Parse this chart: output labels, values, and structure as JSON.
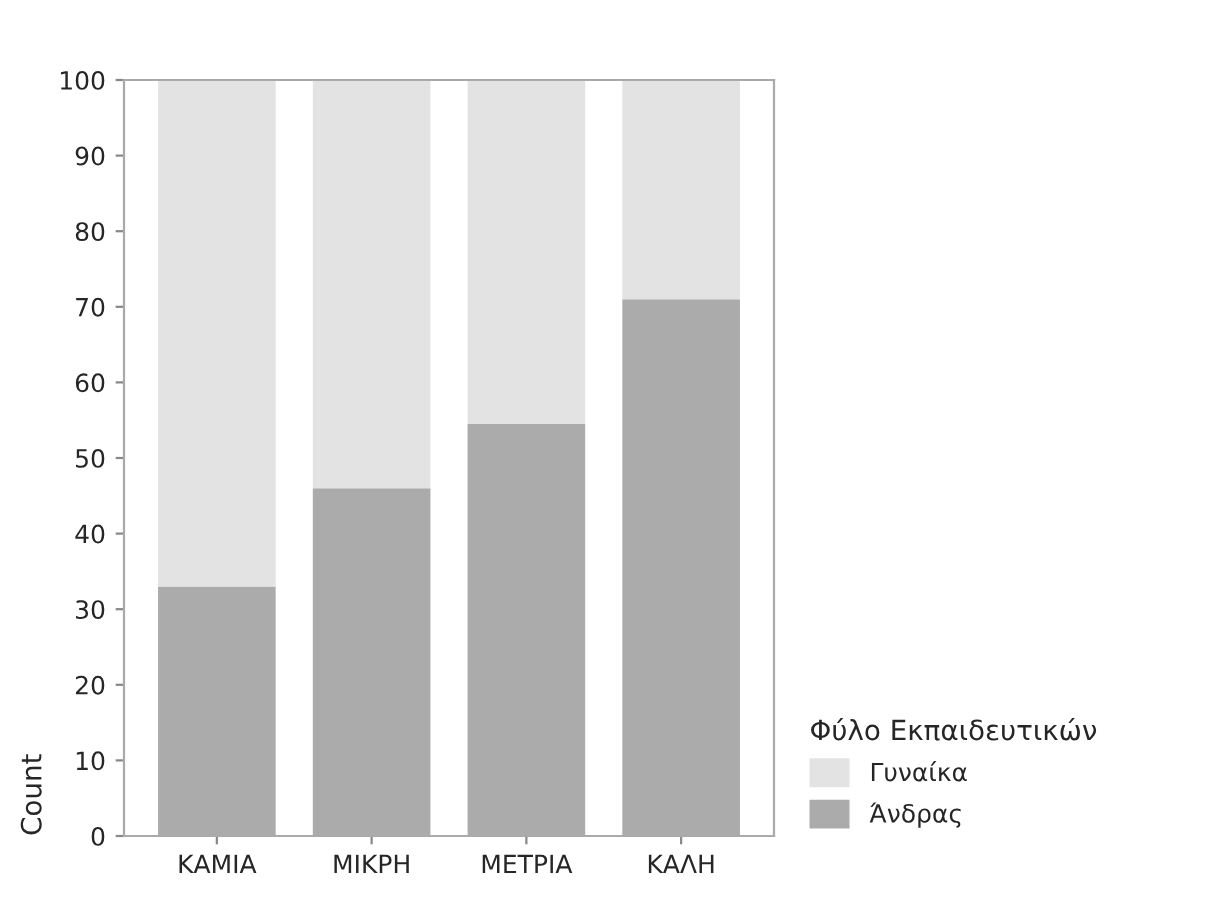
{
  "chart_data": {
    "type": "bar",
    "stacked": true,
    "ylabel": "Count",
    "legend_title": "Φύλο Εκπαιδευτικών",
    "categories": [
      "ΚΑΜΙΑ",
      "ΜΙΚΡΗ",
      "ΜΕΤΡΙΑ",
      "ΚΑΛΗ"
    ],
    "series": [
      {
        "name": "Άνδρας",
        "color": "#ababab",
        "values": [
          33,
          46,
          54.5,
          71
        ]
      },
      {
        "name": "Γυναίκα",
        "color": "#e3e3e3",
        "values": [
          67,
          54,
          45.5,
          29
        ]
      }
    ],
    "ylim": [
      0,
      100
    ],
    "yticks": [
      0,
      10,
      20,
      30,
      40,
      50,
      60,
      70,
      80,
      90,
      100
    ],
    "grid": false,
    "legend": "bottom right"
  }
}
